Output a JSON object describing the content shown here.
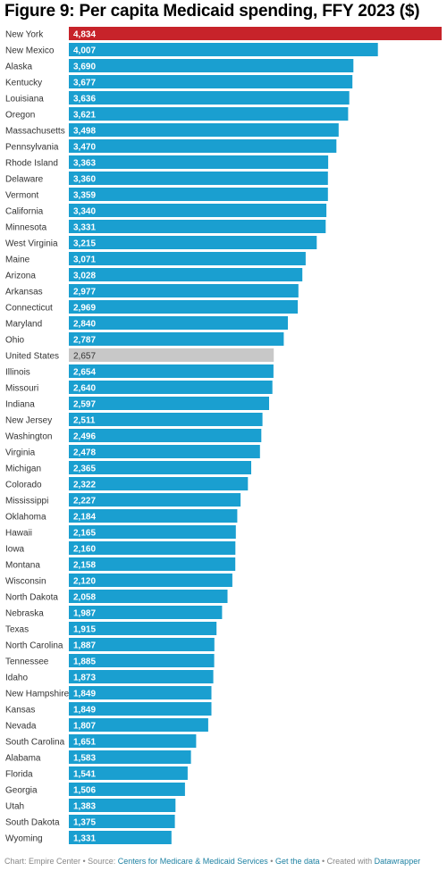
{
  "title": "Figure 9: Per capita Medicaid spending, FFY 2023 ($)",
  "colors": {
    "default_bar": "#1a9fd0",
    "highlight_bar": "#c7232a",
    "reference_bar": "#c8c8c8",
    "label_light": "#ffffff",
    "label_dark": "#333333"
  },
  "chart_data": {
    "type": "bar",
    "orientation": "horizontal",
    "title": "Figure 9: Per capita Medicaid spending, FFY 2023 ($)",
    "xlim": [
      0,
      4834
    ],
    "grid": false,
    "categories": [
      "New York",
      "New Mexico",
      "Alaska",
      "Kentucky",
      "Louisiana",
      "Oregon",
      "Massachusetts",
      "Pennsylvania",
      "Rhode Island",
      "Delaware",
      "Vermont",
      "California",
      "Minnesota",
      "West Virginia",
      "Maine",
      "Arizona",
      "Arkansas",
      "Connecticut",
      "Maryland",
      "Ohio",
      "United States",
      "Illinois",
      "Missouri",
      "Indiana",
      "New Jersey",
      "Washington",
      "Virginia",
      "Michigan",
      "Colorado",
      "Mississippi",
      "Oklahoma",
      "Hawaii",
      "Iowa",
      "Montana",
      "Wisconsin",
      "North Dakota",
      "Nebraska",
      "Texas",
      "North Carolina",
      "Tennessee",
      "Idaho",
      "New Hampshire",
      "Kansas",
      "Nevada",
      "South Carolina",
      "Alabama",
      "Florida",
      "Georgia",
      "Utah",
      "South Dakota",
      "Wyoming"
    ],
    "values": [
      4834,
      4007,
      3690,
      3677,
      3636,
      3621,
      3498,
      3470,
      3363,
      3360,
      3359,
      3340,
      3331,
      3215,
      3071,
      3028,
      2977,
      2969,
      2840,
      2787,
      2657,
      2654,
      2640,
      2597,
      2511,
      2496,
      2478,
      2365,
      2322,
      2227,
      2184,
      2165,
      2160,
      2158,
      2120,
      2058,
      1987,
      1915,
      1887,
      1885,
      1873,
      1849,
      1849,
      1807,
      1651,
      1583,
      1541,
      1506,
      1383,
      1375,
      1331
    ],
    "value_labels": [
      "4,834",
      "4,007",
      "3,690",
      "3,677",
      "3,636",
      "3,621",
      "3,498",
      "3,470",
      "3,363",
      "3,360",
      "3,359",
      "3,340",
      "3,331",
      "3,215",
      "3,071",
      "3,028",
      "2,977",
      "2,969",
      "2,840",
      "2,787",
      "2,657",
      "2,654",
      "2,640",
      "2,597",
      "2,511",
      "2,496",
      "2,478",
      "2,365",
      "2,322",
      "2,227",
      "2,184",
      "2,165",
      "2,160",
      "2,158",
      "2,120",
      "2,058",
      "1,987",
      "1,915",
      "1,887",
      "1,885",
      "1,873",
      "1,849",
      "1,849",
      "1,807",
      "1,651",
      "1,583",
      "1,541",
      "1,506",
      "1,383",
      "1,375",
      "1,331"
    ],
    "highlight": "New York",
    "reference": "United States"
  },
  "footer": {
    "prefix": "Chart: Empire Center • Source: ",
    "source_link": "Centers for Medicare & Medicaid Services",
    "separator1": " • ",
    "data_link": "Get the data",
    "separator2": " • Created with ",
    "tool_link": "Datawrapper"
  }
}
